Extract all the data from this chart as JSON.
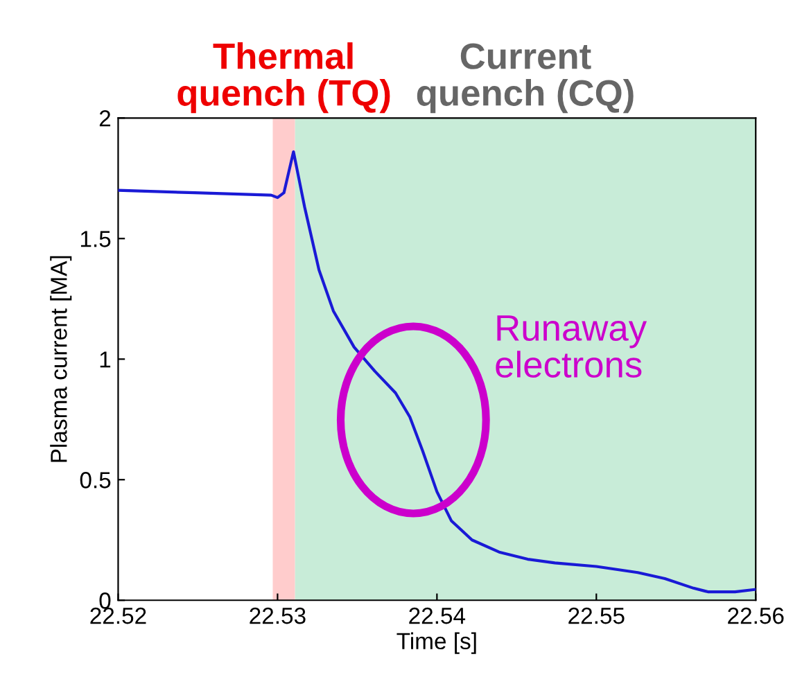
{
  "chart_data": {
    "type": "line",
    "xlabel": "Time [s]",
    "ylabel": "Plasma current [MA]",
    "xlim": [
      22.52,
      22.56
    ],
    "xticks": [
      22.52,
      22.53,
      22.54,
      22.55,
      22.56
    ],
    "ylim": [
      0,
      2
    ],
    "yticks": [
      0,
      0.5,
      1,
      1.5,
      2
    ],
    "grid": false,
    "marker": "none",
    "line_style": "solid",
    "series": [
      {
        "color": "#1a1ad6",
        "x": [
          22.52,
          22.5248,
          22.5296,
          22.53,
          22.5304,
          22.531,
          22.5317,
          22.5326,
          22.5335,
          22.5348,
          22.5361,
          22.5374,
          22.5383,
          22.5391,
          22.54,
          22.5409,
          22.5422,
          22.5439,
          22.5457,
          22.5474,
          22.55,
          22.5526,
          22.5543,
          22.5561,
          22.557,
          22.5587,
          22.56
        ],
        "values": [
          1.7,
          1.69,
          1.68,
          1.67,
          1.69,
          1.86,
          1.63,
          1.37,
          1.2,
          1.05,
          0.95,
          0.86,
          0.76,
          0.62,
          0.45,
          0.33,
          0.25,
          0.2,
          0.17,
          0.155,
          0.14,
          0.115,
          0.09,
          0.05,
          0.035,
          0.035,
          0.045
        ]
      }
    ],
    "bands": [
      {
        "axis": "x",
        "from": 22.5297,
        "to": 22.5311,
        "label": "Thermal\nquench (TQ)",
        "color": "#ffcccc"
      },
      {
        "axis": "x",
        "from": 22.5311,
        "to": 22.56,
        "label": "Current\nquench (CQ)",
        "color": "#c8ecd8"
      }
    ],
    "annotations": [
      "Runaway\nelectrons"
    ]
  }
}
